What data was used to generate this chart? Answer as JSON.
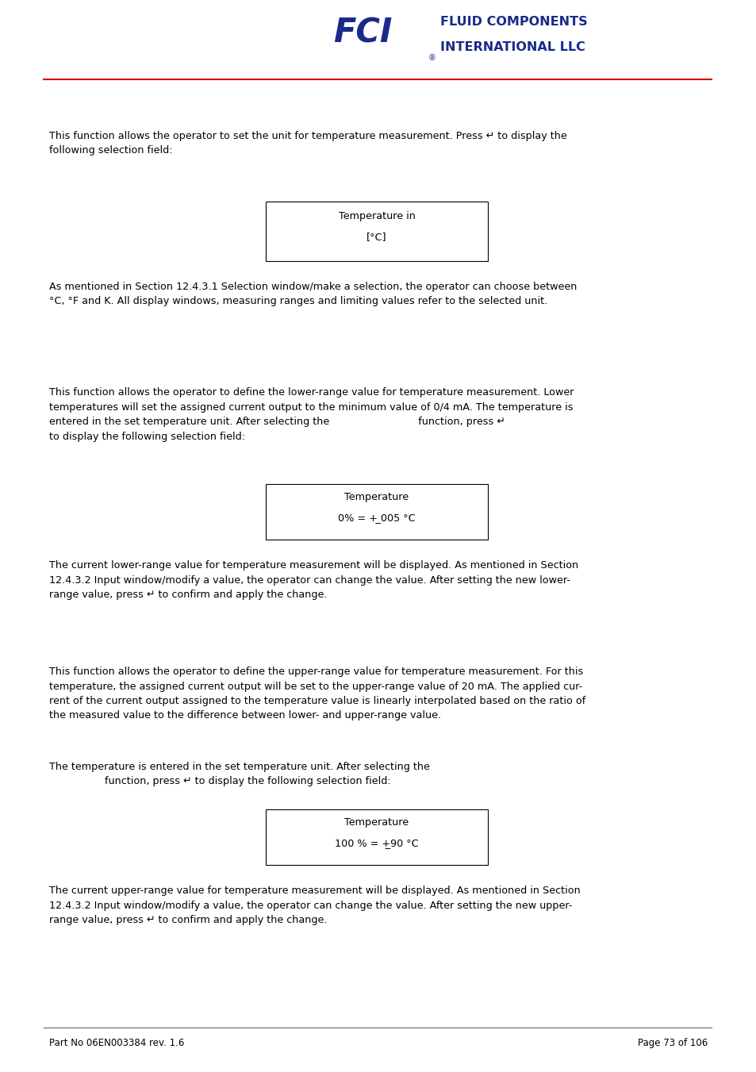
{
  "bg_color": "#ffffff",
  "text_color": "#000000",
  "header_line_color": "#cc0000",
  "logo_text_color": "#1b2a8a",
  "footer_text": "Part No 06EN003384 rev. 1.6",
  "page_number": "Page 73 of 106",
  "box1_line1": "Temperature in",
  "box1_line2": "[°C]",
  "box2_line1": "Temperature",
  "box2_line2": "0% = + ̲005 °C",
  "box3_line1": "Temperature",
  "box3_line2": "100 % = +̲90 °C",
  "para1": "This function allows the operator to set the unit for temperature measurement. Press ↵ to display the\nfollowing selection field:",
  "para2": "As mentioned in Section 12.4.3.1 Selection window/make a selection, the operator can choose between\n°C, °F and K. All display windows, measuring ranges and limiting values refer to the selected unit.",
  "para3": "This function allows the operator to define the lower-range value for temperature measurement. Lower\ntemperatures will set the assigned current output to the minimum value of 0/4 mA. The temperature is\nentered in the set temperature unit. After selecting the                            function, press ↵\nto display the following selection field:",
  "para4": "The current lower-range value for temperature measurement will be displayed. As mentioned in Section\n12.4.3.2 Input window/modify a value, the operator can change the value. After setting the new lower-\nrange value, press ↵ to confirm and apply the change.",
  "para5": "This function allows the operator to define the upper-range value for temperature measurement. For this\ntemperature, the assigned current output will be set to the upper-range value of 20 mA. The applied cur-\nrent of the current output assigned to the temperature value is linearly interpolated based on the ratio of\nthe measured value to the difference between lower- and upper-range value.",
  "para6a": "The temperature is entered in the set temperature unit. After selecting the",
  "para6b": "        function, press ↵ to display the following selection field:",
  "para7": "The current upper-range value for temperature measurement will be displayed. As mentioned in Section\n12.4.3.2 Input window/modify a value, the operator can change the value. After setting the new upper-\nrange value, press ↵ to confirm and apply the change."
}
